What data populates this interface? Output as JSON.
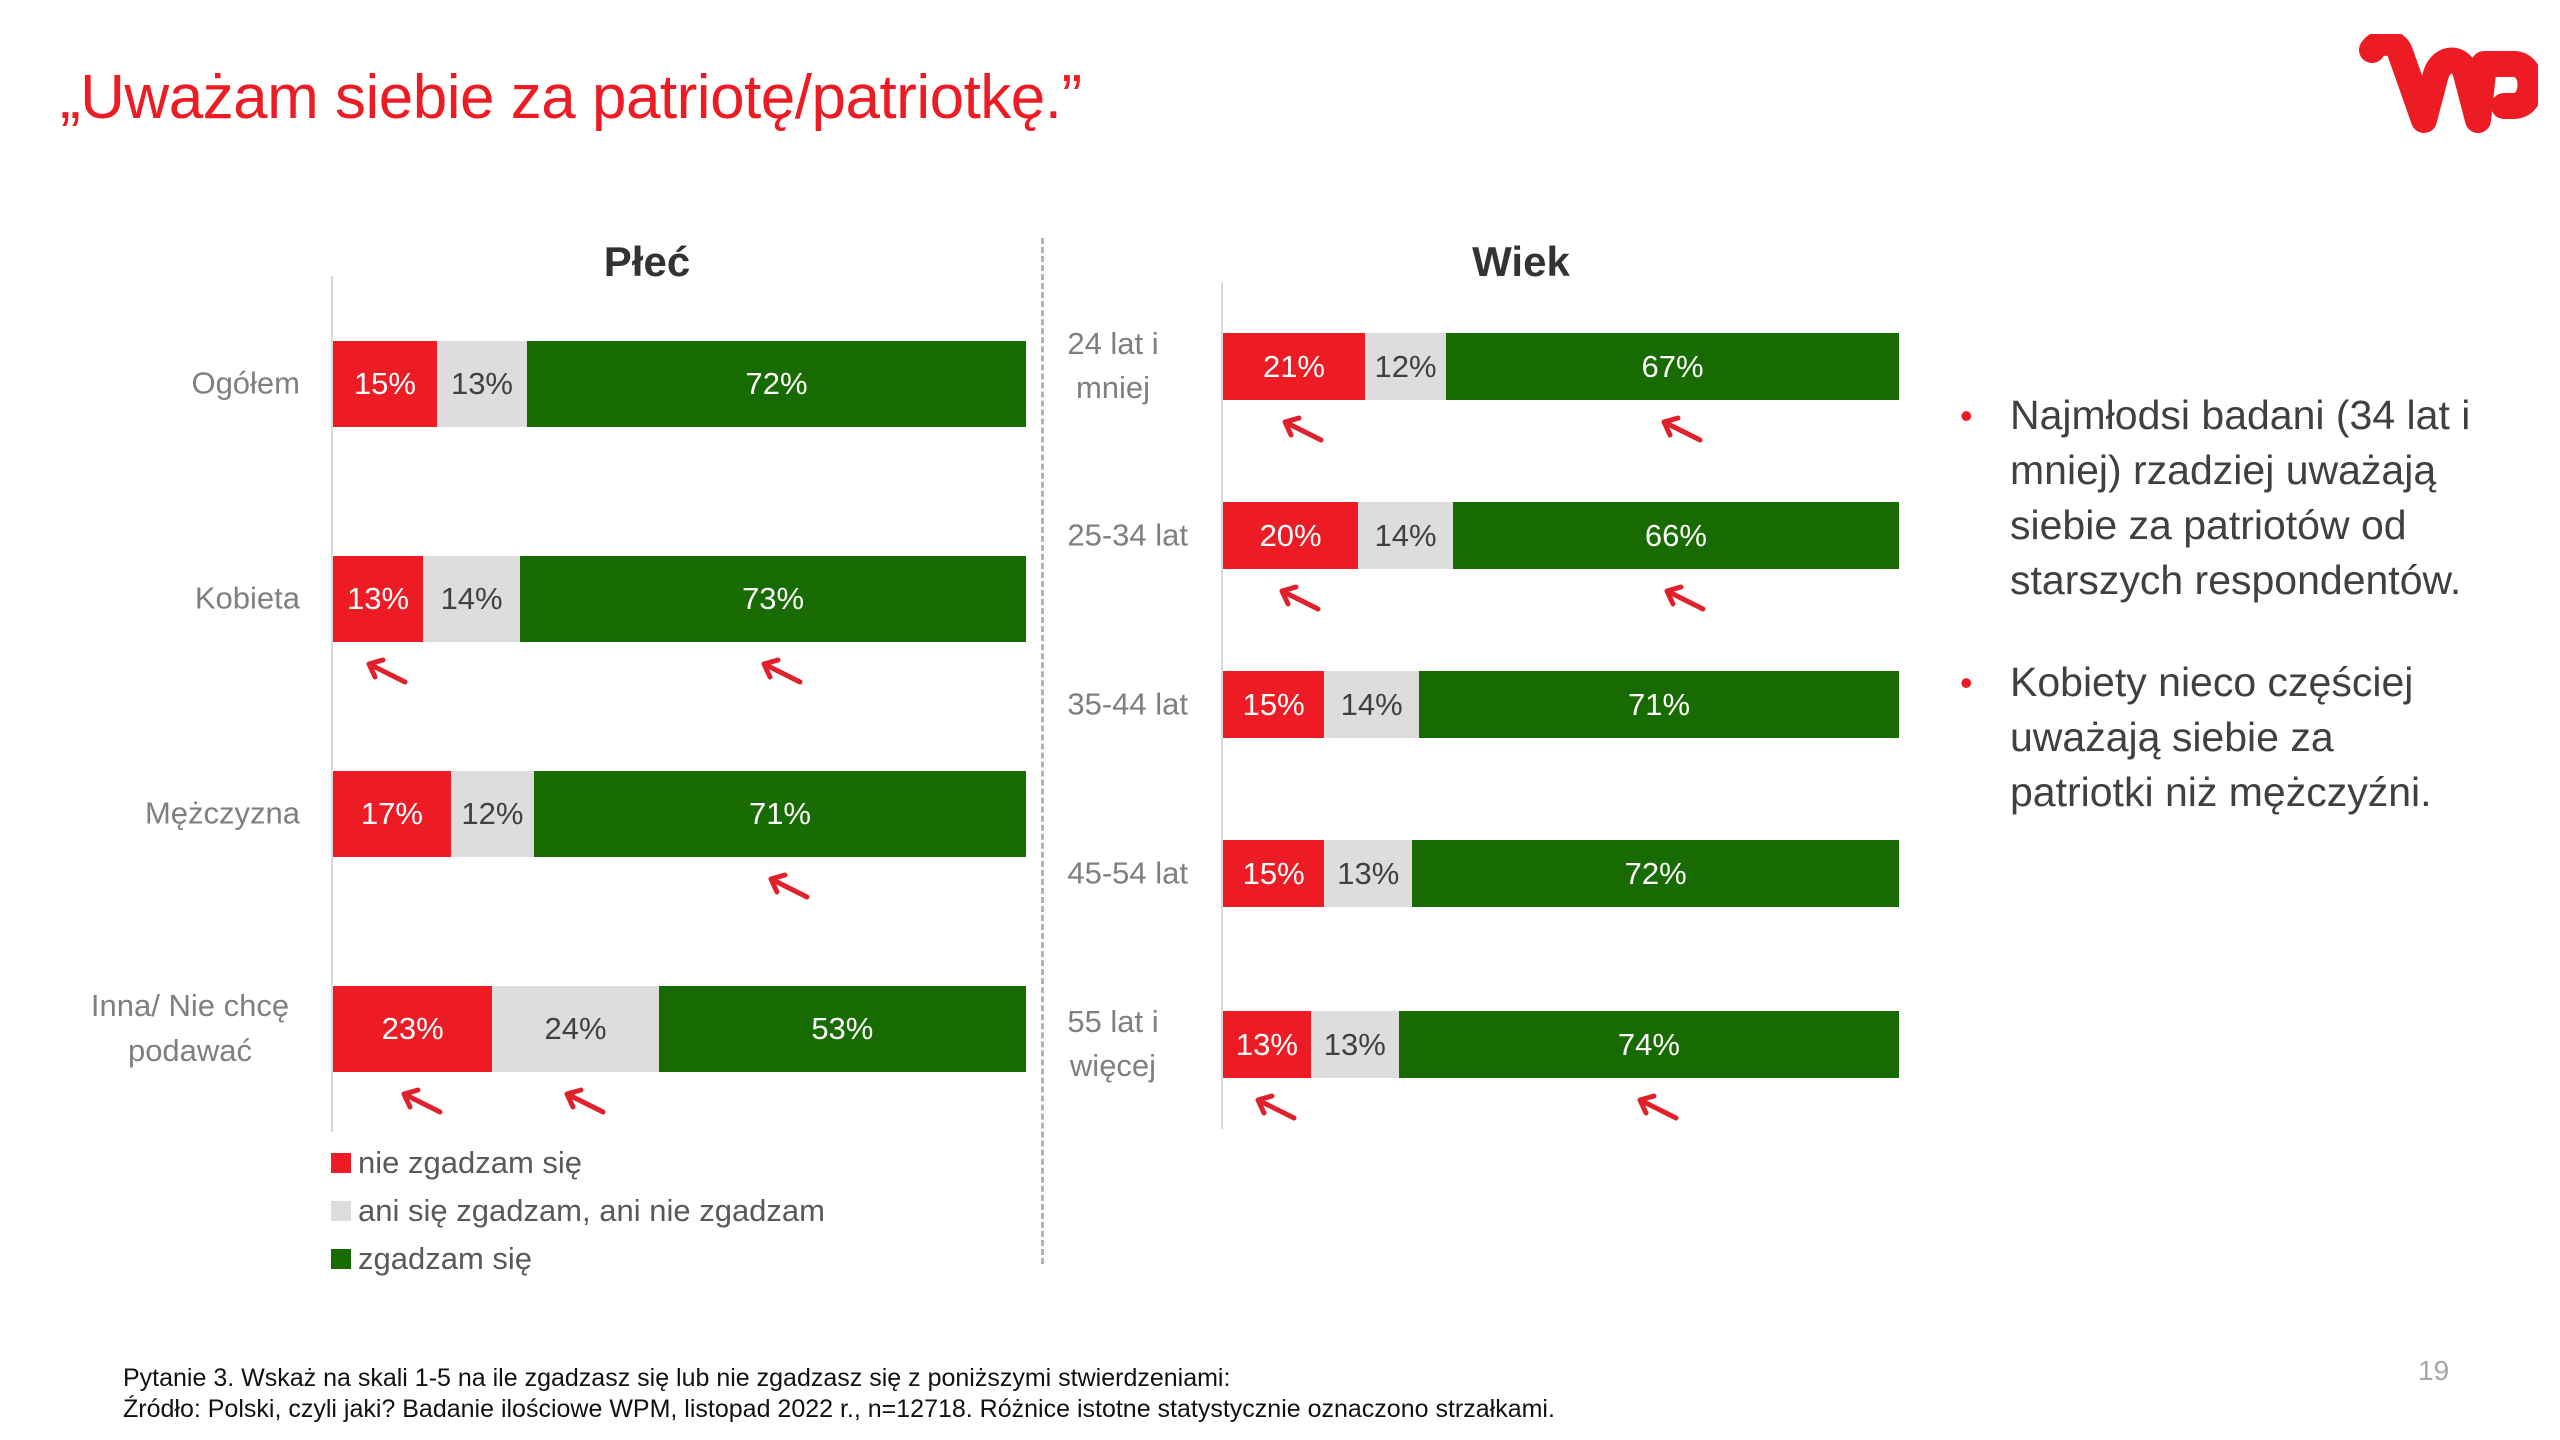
{
  "title": "„Uważam siebie za patriotę/patriotkę.”",
  "logo": {
    "text": "WP",
    "color": "#ED1C24"
  },
  "colors": {
    "disagree": "#ED1C24",
    "neutral": "#DDDDDD",
    "agree": "#176B00",
    "arrow": "#E0202A"
  },
  "chart_data": [
    {
      "type": "bar",
      "orientation": "horizontal-stacked-100",
      "title": "Płeć",
      "categories": [
        "Ogółem",
        "Kobieta",
        "Mężczyzna",
        "Inna/ Nie chcę podawać"
      ],
      "series": [
        {
          "name": "nie zgadzam się",
          "values": [
            15,
            13,
            17,
            23
          ],
          "labels": [
            "15%",
            "13%",
            "17%",
            "23%"
          ],
          "significant": [
            false,
            true,
            false,
            true
          ]
        },
        {
          "name": "ani się zgadzam, ani nie zgadzam",
          "values": [
            13,
            14,
            12,
            24
          ],
          "labels": [
            "13%",
            "14%",
            "12%",
            "24%"
          ],
          "significant": [
            false,
            false,
            false,
            true
          ]
        },
        {
          "name": "zgadzam się",
          "values": [
            72,
            73,
            71,
            53
          ],
          "labels": [
            "72%",
            "73%",
            "71%",
            "53%"
          ],
          "significant": [
            false,
            true,
            true,
            false
          ]
        }
      ],
      "xlim": [
        0,
        100
      ],
      "legend": "bottom-left"
    },
    {
      "type": "bar",
      "orientation": "horizontal-stacked-100",
      "title": "Wiek",
      "categories": [
        "24 lat i mniej",
        "25-34 lat",
        "35-44 lat",
        "45-54 lat",
        "55 lat i więcej"
      ],
      "series": [
        {
          "name": "nie zgadzam się",
          "values": [
            21,
            20,
            15,
            15,
            13
          ],
          "labels": [
            "21%",
            "20%",
            "15%",
            "15%",
            "13%"
          ],
          "significant": [
            true,
            true,
            false,
            false,
            true
          ]
        },
        {
          "name": "ani się zgadzam, ani nie zgadzam",
          "values": [
            12,
            14,
            14,
            13,
            13
          ],
          "labels": [
            "12%",
            "14%",
            "14%",
            "13%",
            "13%"
          ],
          "significant": [
            false,
            false,
            false,
            false,
            false
          ]
        },
        {
          "name": "zgadzam się",
          "values": [
            67,
            66,
            71,
            72,
            74
          ],
          "labels": [
            "67%",
            "66%",
            "71%",
            "72%",
            "74%"
          ],
          "significant": [
            true,
            true,
            false,
            false,
            true
          ]
        }
      ],
      "xlim": [
        0,
        100
      ]
    }
  ],
  "legend": [
    {
      "label": "nie zgadzam się",
      "color": "#ED1C24"
    },
    {
      "label": "ani się zgadzam, ani nie zgadzam",
      "color": "#DDDDDD"
    },
    {
      "label": "zgadzam się",
      "color": "#176B00"
    }
  ],
  "bullets": [
    "Najmłodsi badani (34 lat i mniej) rzadziej uważają siebie za patriotów od starszych respondentów.",
    "Kobiety nieco częściej uważają siebie za patriotki niż mężczyźni."
  ],
  "footer": {
    "question": "Pytanie 3. Wskaż na skali 1-5 na ile zgadzasz się lub nie zgadzasz się z poniższymi stwierdzeniami:",
    "source": "Źródło: Polski, czyli jaki? Badanie ilościowe WPM, listopad 2022 r., n=12718. Różnice istotne statystycznie oznaczono strzałkami."
  },
  "page_number": "19"
}
